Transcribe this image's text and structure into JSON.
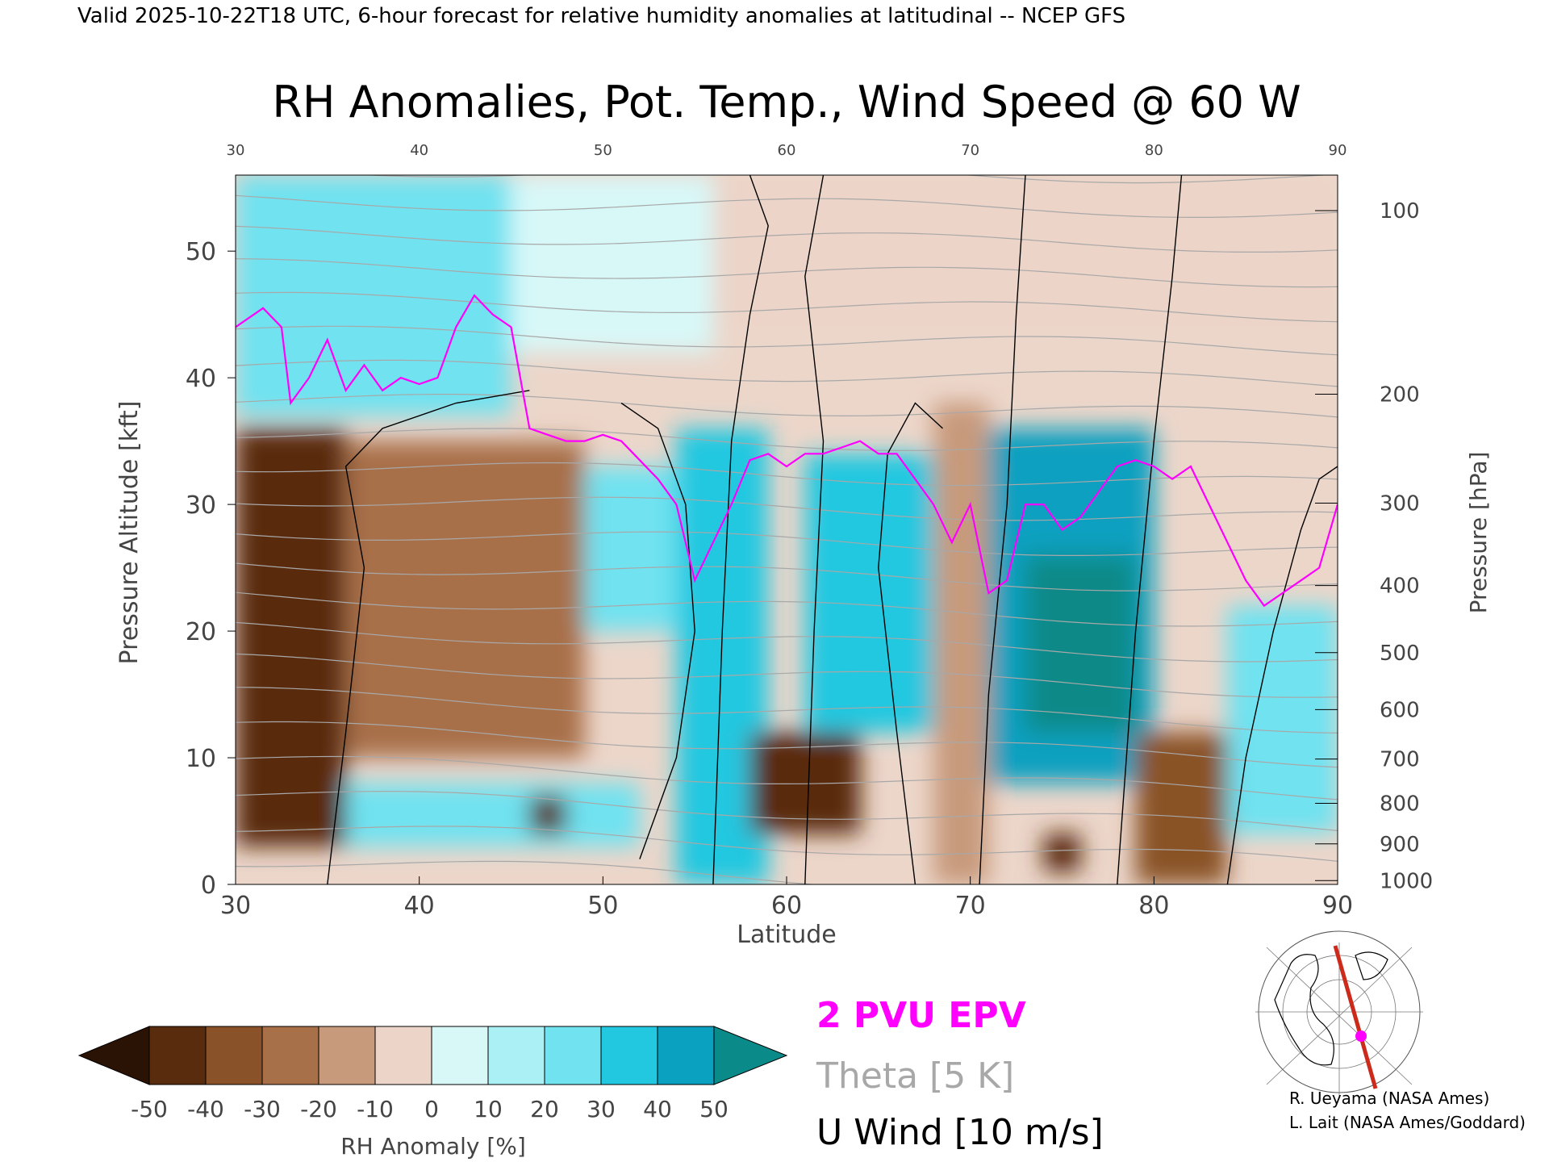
{
  "header": {
    "valid_line": "Valid 2025-10-22T18 UTC, 6-hour forecast for relative humidity anomalies at latitudinal -- NCEP GFS"
  },
  "chart_data": {
    "type": "heatmap",
    "title": "RH Anomalies, Pot. Temp., Wind Speed @ 60 W",
    "xlabel": "Latitude",
    "ylabel_left": "Pressure Altitude [kft]",
    "ylabel_right": "Pressure [hPa]",
    "xlim": [
      30,
      90
    ],
    "ylim_kft": [
      0,
      56
    ],
    "x_ticks": [
      30,
      40,
      50,
      60,
      70,
      80,
      90
    ],
    "x_tick_labels": [
      "30",
      "40",
      "50",
      "60",
      "70",
      "80",
      "90"
    ],
    "top_ticks": [
      30,
      40,
      50,
      60,
      70,
      80,
      90
    ],
    "top_tick_labels": [
      "30",
      "40",
      "50",
      "60",
      "70",
      "80",
      "90"
    ],
    "y_ticks": [
      0,
      10,
      20,
      30,
      40,
      50
    ],
    "y_tick_labels": [
      "0",
      "10",
      "20",
      "30",
      "40",
      "50"
    ],
    "pressure_ticks": [
      {
        "kft": 53.2,
        "label": "100"
      },
      {
        "kft": 38.7,
        "label": "200"
      },
      {
        "kft": 30.1,
        "label": "300"
      },
      {
        "kft": 23.6,
        "label": "400"
      },
      {
        "kft": 18.3,
        "label": "500"
      },
      {
        "kft": 13.8,
        "label": "600"
      },
      {
        "kft": 9.9,
        "label": "700"
      },
      {
        "kft": 6.4,
        "label": "800"
      },
      {
        "kft": 3.2,
        "label": "900"
      },
      {
        "kft": 0.3,
        "label": "1000"
      }
    ],
    "grid": false,
    "rh_anomaly_regions": [
      {
        "lat": [
          30,
          36
        ],
        "kft": [
          3,
          36
        ],
        "value": -45
      },
      {
        "lat": [
          36,
          49
        ],
        "kft": [
          10,
          35
        ],
        "value": -25
      },
      {
        "lat": [
          30,
          45
        ],
        "kft": [
          37,
          56
        ],
        "value": 25
      },
      {
        "lat": [
          45,
          56
        ],
        "kft": [
          42,
          56
        ],
        "value": 0
      },
      {
        "lat": [
          56,
          90
        ],
        "kft": [
          44,
          56
        ],
        "value": -10
      },
      {
        "lat": [
          49,
          55
        ],
        "kft": [
          20,
          33
        ],
        "value": 25
      },
      {
        "lat": [
          54,
          59
        ],
        "kft": [
          0,
          36
        ],
        "value": 35
      },
      {
        "lat": [
          58,
          64
        ],
        "kft": [
          4,
          12
        ],
        "value": -45
      },
      {
        "lat": [
          61,
          68
        ],
        "kft": [
          12,
          34
        ],
        "value": 30
      },
      {
        "lat": [
          68,
          71
        ],
        "kft": [
          0,
          38
        ],
        "value": -20
      },
      {
        "lat": [
          71,
          80
        ],
        "kft": [
          8,
          36
        ],
        "value": 45
      },
      {
        "lat": [
          73,
          79
        ],
        "kft": [
          12,
          26
        ],
        "value": 55
      },
      {
        "lat": [
          79,
          84
        ],
        "kft": [
          0,
          12
        ],
        "value": -40
      },
      {
        "lat": [
          84,
          90
        ],
        "kft": [
          4,
          22
        ],
        "value": 25
      },
      {
        "lat": [
          36,
          52
        ],
        "kft": [
          3,
          8
        ],
        "value": 25
      },
      {
        "lat": [
          46,
          48
        ],
        "kft": [
          4,
          7
        ],
        "value": -50
      },
      {
        "lat": [
          74,
          76
        ],
        "kft": [
          1,
          4
        ],
        "value": -50
      }
    ],
    "epv_2pvu_line": {
      "lat": [
        30,
        31.5,
        32.5,
        33,
        34,
        35,
        36,
        37,
        38,
        39,
        40,
        41,
        42,
        43,
        44,
        45,
        46,
        47,
        48,
        49,
        50,
        51,
        52,
        53,
        54,
        55,
        56,
        57,
        58,
        59,
        60,
        61,
        62,
        63,
        64,
        65,
        66,
        67,
        68,
        69,
        70,
        71,
        72,
        73,
        74,
        75,
        76,
        77,
        78,
        79,
        80,
        81,
        82,
        83,
        84,
        85,
        86,
        87,
        88,
        89,
        90
      ],
      "kft": [
        44,
        45.5,
        44,
        38,
        40,
        43,
        39,
        41,
        39,
        40,
        39.5,
        40,
        44,
        46.5,
        45,
        44,
        36,
        35.5,
        35,
        35,
        35.5,
        35,
        33.5,
        32,
        30,
        24,
        27,
        30,
        33.5,
        34,
        33,
        34,
        34,
        34.5,
        35,
        34,
        34,
        32,
        30,
        27,
        30,
        23,
        24,
        30,
        30,
        28,
        29,
        31,
        33,
        33.5,
        33,
        32,
        33,
        30,
        27,
        24,
        22,
        23,
        24,
        25,
        30
      ]
    },
    "theta_contours_K": [
      280,
      290,
      300,
      310,
      320,
      330,
      340,
      350,
      360,
      370,
      380,
      390,
      400,
      410,
      420
    ],
    "u_wind_contours_ms": [
      -10,
      0,
      10,
      20,
      30
    ],
    "colorbar": {
      "label": "RH Anomaly [%]",
      "tick_values": [
        -50,
        -40,
        -30,
        -20,
        -10,
        0,
        10,
        20,
        30,
        40,
        50
      ],
      "tick_labels": [
        "-50",
        "-40",
        "-30",
        "-20",
        "-10",
        "0",
        "10",
        "20",
        "30",
        "40",
        "50"
      ],
      "colors": [
        "#2a1205",
        "#5a2c0e",
        "#8a5228",
        "#a87048",
        "#c89a7c",
        "#ecd4c8",
        "#d8f8f8",
        "#aaf0f5",
        "#70e2f0",
        "#22c8e0",
        "#0aa0c0",
        "#0a8a88"
      ]
    },
    "legend": {
      "epv": "2 PVU EPV",
      "theta": "Theta [5 K]",
      "uwind": "U Wind [10 m/s]",
      "colors": {
        "epv": "#ff00ff",
        "theta": "#a8a8a8",
        "uwind": "#000000"
      }
    }
  },
  "credits": {
    "line1": "R. Ueyama (NASA Ames)",
    "line2": "L. Lait (NASA Ames/Goddard)"
  },
  "locator_map": {
    "icon": "polar-locator-map-icon",
    "colors": {
      "track": "#cc2a1a",
      "marker": "#ff00ff"
    }
  }
}
